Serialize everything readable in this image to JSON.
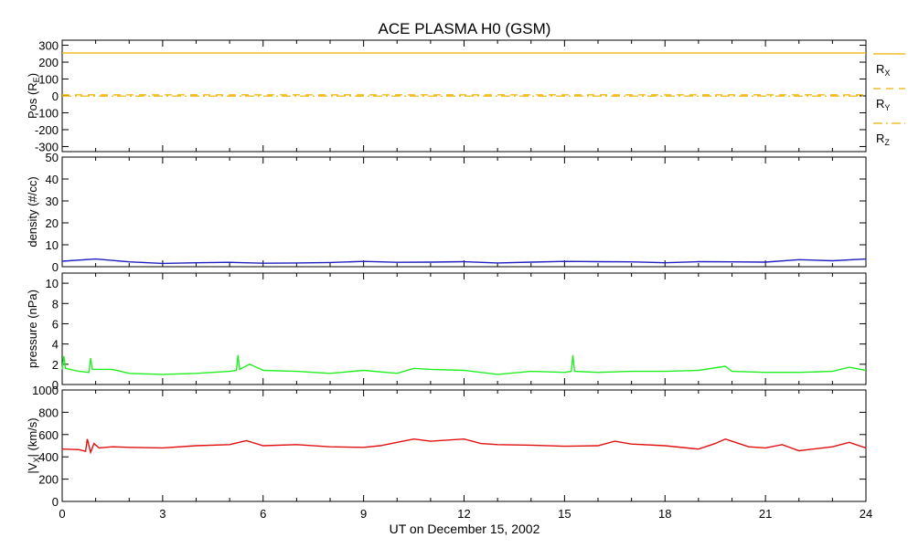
{
  "title": "ACE PLASMA H0 (GSM)",
  "xlabel": "UT on December 15, 2002",
  "x_ticks": [
    "0",
    "3",
    "6",
    "9",
    "12",
    "15",
    "18",
    "21",
    "24"
  ],
  "colors": {
    "position": "#f0b000",
    "density": "#2020c0",
    "pressure": "#22ee22",
    "velocity": "#e01010"
  },
  "chart_data": [
    {
      "type": "line",
      "name": "position",
      "ylabel": "Pos (R_E)",
      "ylabel_main": "Pos (R",
      "ylabel_sub": "E",
      "ylabel_end": ")",
      "xlim": [
        0,
        24
      ],
      "ylim": [
        -330,
        330
      ],
      "y_ticks": [
        "300",
        "200",
        "100",
        "0",
        "-100",
        "-200",
        "-300"
      ],
      "series": [
        {
          "name": "RX",
          "label_main": "R",
          "label_sub": "X",
          "style": "solid",
          "x": [
            0,
            24
          ],
          "y": [
            254,
            254
          ]
        },
        {
          "name": "RY",
          "label_main": "R",
          "label_sub": "Y",
          "style": "dashed",
          "x": [
            0,
            24
          ],
          "y": [
            6,
            6
          ]
        },
        {
          "name": "RZ",
          "label_main": "R",
          "label_sub": "Z",
          "style": "dashdot",
          "x": [
            0,
            24
          ],
          "y": [
            -1,
            -1
          ]
        }
      ]
    },
    {
      "type": "line",
      "name": "density",
      "ylabel": "density (#/cc)",
      "xlim": [
        0,
        24
      ],
      "ylim": [
        0,
        50
      ],
      "y_ticks": [
        "50",
        "40",
        "30",
        "20",
        "10",
        "0"
      ],
      "x": [
        0,
        1,
        2,
        3,
        4,
        5,
        6,
        7,
        8,
        9,
        10,
        11,
        12,
        13,
        14,
        15,
        16,
        17,
        18,
        19,
        20,
        21,
        22,
        23,
        24
      ],
      "y": [
        2.5,
        3.5,
        2.2,
        1.5,
        1.8,
        2.0,
        1.6,
        1.7,
        1.9,
        2.4,
        2.0,
        2.1,
        2.3,
        1.7,
        2.1,
        2.4,
        2.3,
        2.2,
        1.8,
        2.3,
        2.2,
        2.1,
        3.2,
        2.7,
        3.5
      ]
    },
    {
      "type": "line",
      "name": "pressure",
      "ylabel": "pressure (nPa)",
      "xlim": [
        0,
        24
      ],
      "ylim": [
        0,
        11
      ],
      "y_ticks": [
        "10",
        "8",
        "6",
        "4",
        "2",
        "0"
      ],
      "x": [
        0,
        0.05,
        0.1,
        0.5,
        0.8,
        0.85,
        0.9,
        1.5,
        2,
        3,
        4,
        5,
        5.2,
        5.25,
        5.3,
        5.6,
        6,
        7,
        8,
        9,
        10,
        10.5,
        11,
        12,
        12.5,
        13,
        14,
        15,
        15.2,
        15.25,
        15.3,
        16,
        17,
        18,
        19,
        19.8,
        20,
        21,
        22,
        23,
        23.5,
        24
      ],
      "y": [
        1.5,
        2.8,
        1.6,
        1.3,
        1.2,
        2.6,
        1.5,
        1.5,
        1.1,
        1.0,
        1.1,
        1.3,
        1.4,
        2.9,
        1.5,
        2.0,
        1.4,
        1.3,
        1.1,
        1.4,
        1.1,
        1.6,
        1.5,
        1.4,
        1.2,
        1.0,
        1.3,
        1.2,
        1.3,
        2.9,
        1.3,
        1.2,
        1.3,
        1.3,
        1.4,
        1.8,
        1.3,
        1.2,
        1.2,
        1.3,
        1.7,
        1.4
      ]
    },
    {
      "type": "line",
      "name": "velocity",
      "ylabel": "|V_X| (km/s)",
      "ylabel_main": "|V",
      "ylabel_sub": "X",
      "ylabel_end": "| (km/s)",
      "xlim": [
        0,
        24
      ],
      "ylim": [
        0,
        1000
      ],
      "y_ticks": [
        "1000",
        "800",
        "600",
        "400",
        "200",
        "0"
      ],
      "x": [
        0,
        0.5,
        0.7,
        0.75,
        0.85,
        0.95,
        1.1,
        1.5,
        2,
        3,
        4,
        5,
        5.5,
        6,
        7,
        8,
        9,
        9.5,
        10,
        10.5,
        11,
        12,
        12.5,
        13,
        14,
        15,
        16,
        16.5,
        17,
        18,
        19,
        19.5,
        19.8,
        20,
        20.5,
        21,
        21.5,
        22,
        23,
        23.5,
        24
      ],
      "y": [
        470,
        465,
        450,
        560,
        440,
        520,
        480,
        490,
        485,
        480,
        500,
        510,
        545,
        500,
        510,
        490,
        485,
        500,
        530,
        560,
        540,
        560,
        520,
        510,
        505,
        495,
        500,
        540,
        515,
        500,
        470,
        520,
        560,
        540,
        490,
        480,
        510,
        455,
        490,
        530,
        480
      ]
    }
  ]
}
